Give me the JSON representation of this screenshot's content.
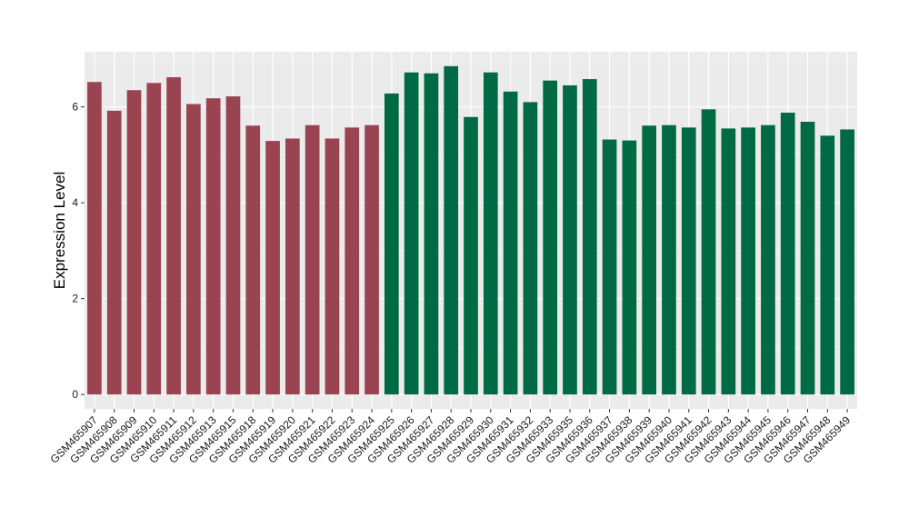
{
  "chart_data": {
    "type": "bar",
    "title": "",
    "xlabel": "",
    "ylabel": "Expression Level",
    "ylim": [
      -0.3,
      7.15
    ],
    "yticks": [
      0,
      2,
      4,
      6
    ],
    "grid": true,
    "legend": "none",
    "colors": {
      "panel": "#ebebeb",
      "grid_major": "#ffffff",
      "grid_minor": "#f5f5f5"
    },
    "categories": [
      "GSM465907",
      "GSM465908",
      "GSM465909",
      "GSM465910",
      "GSM465911",
      "GSM465912",
      "GSM465913",
      "GSM465915",
      "GSM465918",
      "GSM465919",
      "GSM465920",
      "GSM465921",
      "GSM465922",
      "GSM465923",
      "GSM465924",
      "GSM465925",
      "GSM465926",
      "GSM465927",
      "GSM465928",
      "GSM465929",
      "GSM465930",
      "GSM465931",
      "GSM465932",
      "GSM465933",
      "GSM465935",
      "GSM465936",
      "GSM465937",
      "GSM465938",
      "GSM465939",
      "GSM465940",
      "GSM465941",
      "GSM465942",
      "GSM465943",
      "GSM465944",
      "GSM465945",
      "GSM465946",
      "GSM465947",
      "GSM465948",
      "GSM465949"
    ],
    "values": [
      6.52,
      5.92,
      6.35,
      6.5,
      6.62,
      6.06,
      6.18,
      6.22,
      5.61,
      5.29,
      5.34,
      5.62,
      5.34,
      5.57,
      5.62,
      6.28,
      6.72,
      6.7,
      6.85,
      5.79,
      6.72,
      6.32,
      6.1,
      6.55,
      6.45,
      6.58,
      5.32,
      5.3,
      5.61,
      5.62,
      5.57,
      5.95,
      5.55,
      5.57,
      5.62,
      5.88,
      5.69,
      5.4,
      5.53
    ],
    "bar_colors": [
      "#9b4451",
      "#9b4451",
      "#9b4451",
      "#9b4451",
      "#9b4451",
      "#9b4451",
      "#9b4451",
      "#9b4451",
      "#9b4451",
      "#9b4451",
      "#9b4451",
      "#9b4451",
      "#9b4451",
      "#9b4451",
      "#9b4451",
      "#006a45",
      "#006a45",
      "#006a45",
      "#006a45",
      "#006a45",
      "#006a45",
      "#006a45",
      "#006a45",
      "#006a45",
      "#006a45",
      "#006a45",
      "#006a45",
      "#006a45",
      "#006a45",
      "#006a45",
      "#006a45",
      "#006a45",
      "#006a45",
      "#006a45",
      "#006a45",
      "#006a45",
      "#006a45",
      "#006a45",
      "#006a45"
    ]
  }
}
